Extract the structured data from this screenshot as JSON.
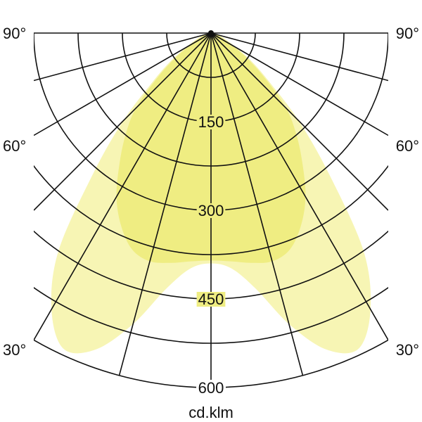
{
  "chart_data": {
    "type": "polar",
    "unit_label": "cd.klm",
    "radial_ticks": [
      150,
      300,
      450,
      600
    ],
    "radial_grid_step": 75,
    "radial_max": 600,
    "angle_grid_step": 15,
    "angle_labels": [
      "90°",
      "60°",
      "30°"
    ],
    "grid": true,
    "series": [
      {
        "color": "#f7f5b4",
        "angles": [
          0,
          5,
          10,
          15,
          20,
          25,
          30,
          35,
          40,
          45,
          50,
          55,
          60,
          70,
          80,
          90
        ],
        "values": [
          390,
          400,
          440,
          510,
          570,
          590,
          540,
          450,
          310,
          210,
          130,
          85,
          50,
          20,
          5,
          0
        ]
      },
      {
        "color": "#efed82",
        "angles": [
          0,
          5,
          10,
          15,
          20,
          25,
          30,
          35,
          40,
          45,
          50,
          55,
          60,
          70,
          80,
          90
        ],
        "values": [
          385,
          388,
          395,
          400,
          390,
          360,
          320,
          270,
          225,
          180,
          120,
          75,
          40,
          15,
          4,
          0
        ]
      }
    ]
  }
}
